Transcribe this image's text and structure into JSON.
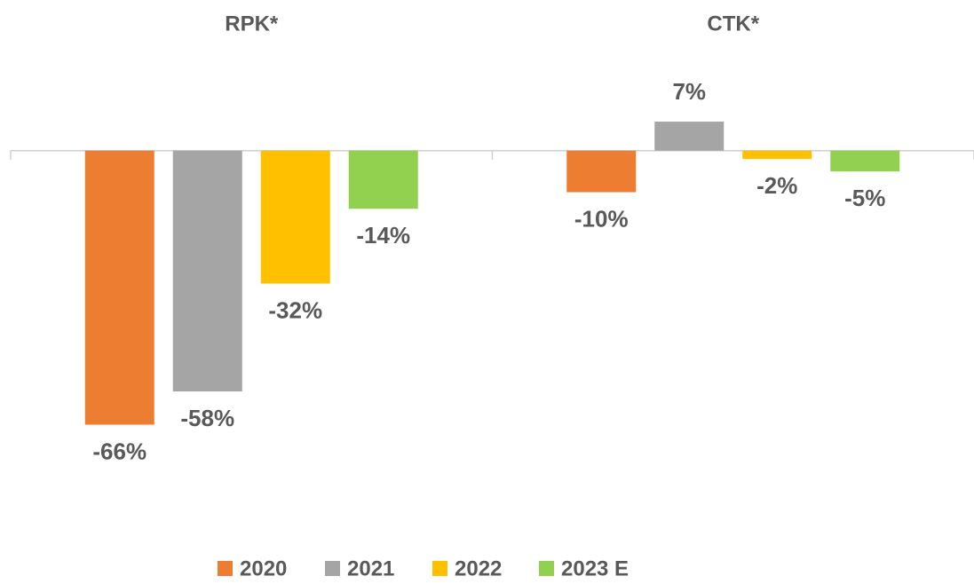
{
  "chart_data": {
    "type": "bar",
    "categories": [
      "RPK*",
      "CTK*"
    ],
    "series": [
      {
        "name": "2020",
        "color": "#ed7d31",
        "values": [
          -66,
          -10
        ],
        "value_labels": [
          "-66%",
          "-10%"
        ]
      },
      {
        "name": "2021",
        "color": "#a5a5a5",
        "values": [
          -58,
          7
        ],
        "value_labels": [
          "-58%",
          "7%"
        ]
      },
      {
        "name": "2022",
        "color": "#ffc000",
        "values": [
          -32,
          -2
        ],
        "value_labels": [
          "-32%",
          "-2%"
        ]
      },
      {
        "name": "2023 E",
        "color": "#92d050",
        "values": [
          -14,
          -5
        ],
        "value_labels": [
          "-14%",
          "-5%"
        ]
      }
    ],
    "ylim": [
      -80,
      10
    ],
    "legend": "bottom"
  }
}
